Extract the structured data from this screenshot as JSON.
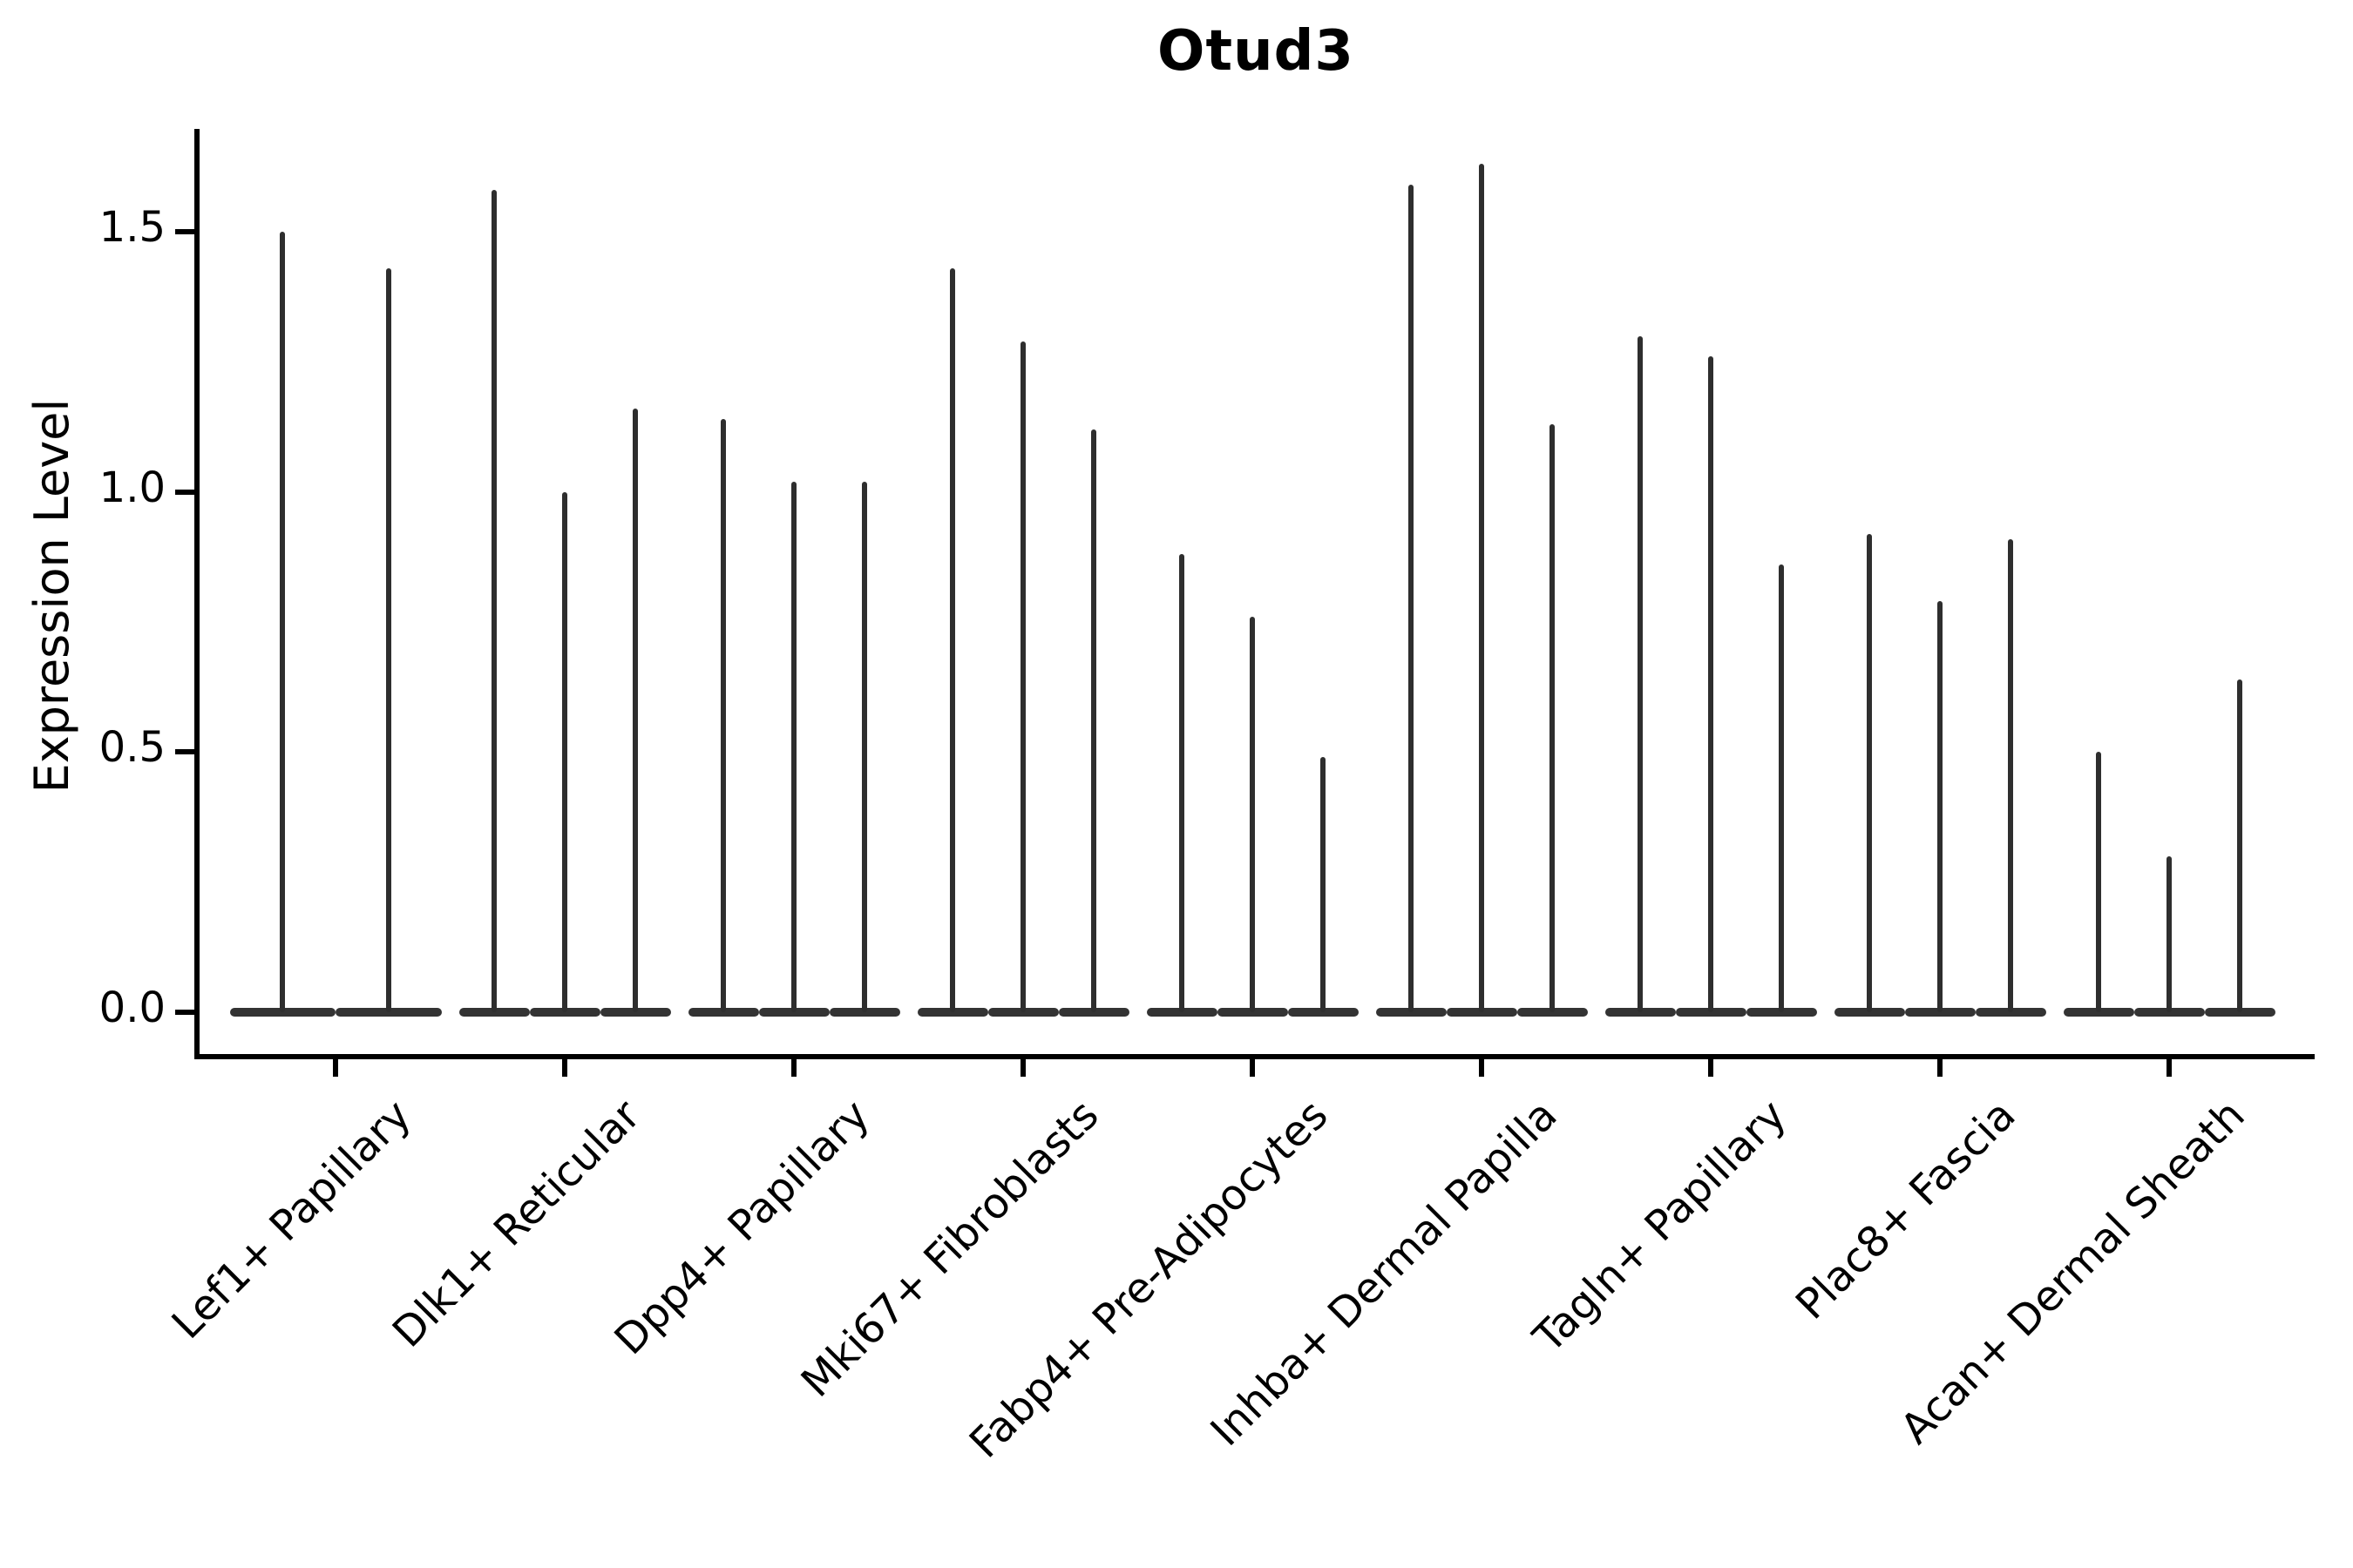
{
  "title": "Otud3",
  "ylabel": "Expression Level",
  "chart_data": {
    "type": "violin",
    "title": "Otud3",
    "xlabel": "",
    "ylabel": "Expression Level",
    "ylim": [
      -0.08,
      1.69
    ],
    "yticks": [
      0.0,
      0.5,
      1.0,
      1.5
    ],
    "grid": false,
    "legend": "none",
    "description": "Needle-thin violin plot of Otud3 expression; each category holds multiple narrow violins flattened at 0 with a thin spike rising to its maximum expression value.",
    "categories": [
      "Lef1+ Papillary",
      "Dlk1+ Reticular",
      "Dpp4+ Papillary",
      "Mki67+ Fibroblasts",
      "Fabp4+ Pre-Adipocytes",
      "Inhba+ Dermal Papilla",
      "Tagln+ Papillary",
      "Plac8+ Fascia",
      "Acan+ Dermal Sheath"
    ],
    "series": [
      {
        "category": "Lef1+ Papillary",
        "violin_maxima": [
          1.5,
          1.43
        ]
      },
      {
        "category": "Dlk1+ Reticular",
        "violin_maxima": [
          1.58,
          1.0,
          1.16
        ]
      },
      {
        "category": "Dpp4+ Papillary",
        "violin_maxima": [
          1.14,
          1.02,
          1.02
        ]
      },
      {
        "category": "Mki67+ Fibroblasts",
        "violin_maxima": [
          1.43,
          1.29,
          1.12
        ]
      },
      {
        "category": "Fabp4+ Pre-Adipocytes",
        "violin_maxima": [
          0.88,
          0.76,
          0.49
        ]
      },
      {
        "category": "Inhba+ Dermal Papilla",
        "violin_maxima": [
          1.59,
          1.63,
          1.13
        ]
      },
      {
        "category": "Tagln+ Papillary",
        "violin_maxima": [
          1.3,
          1.26,
          0.86
        ]
      },
      {
        "category": "Plac8+ Fascia",
        "violin_maxima": [
          0.92,
          0.79,
          0.91
        ]
      },
      {
        "category": "Acan+ Dermal Sheath",
        "violin_maxima": [
          0.5,
          0.3,
          0.64
        ]
      }
    ]
  }
}
